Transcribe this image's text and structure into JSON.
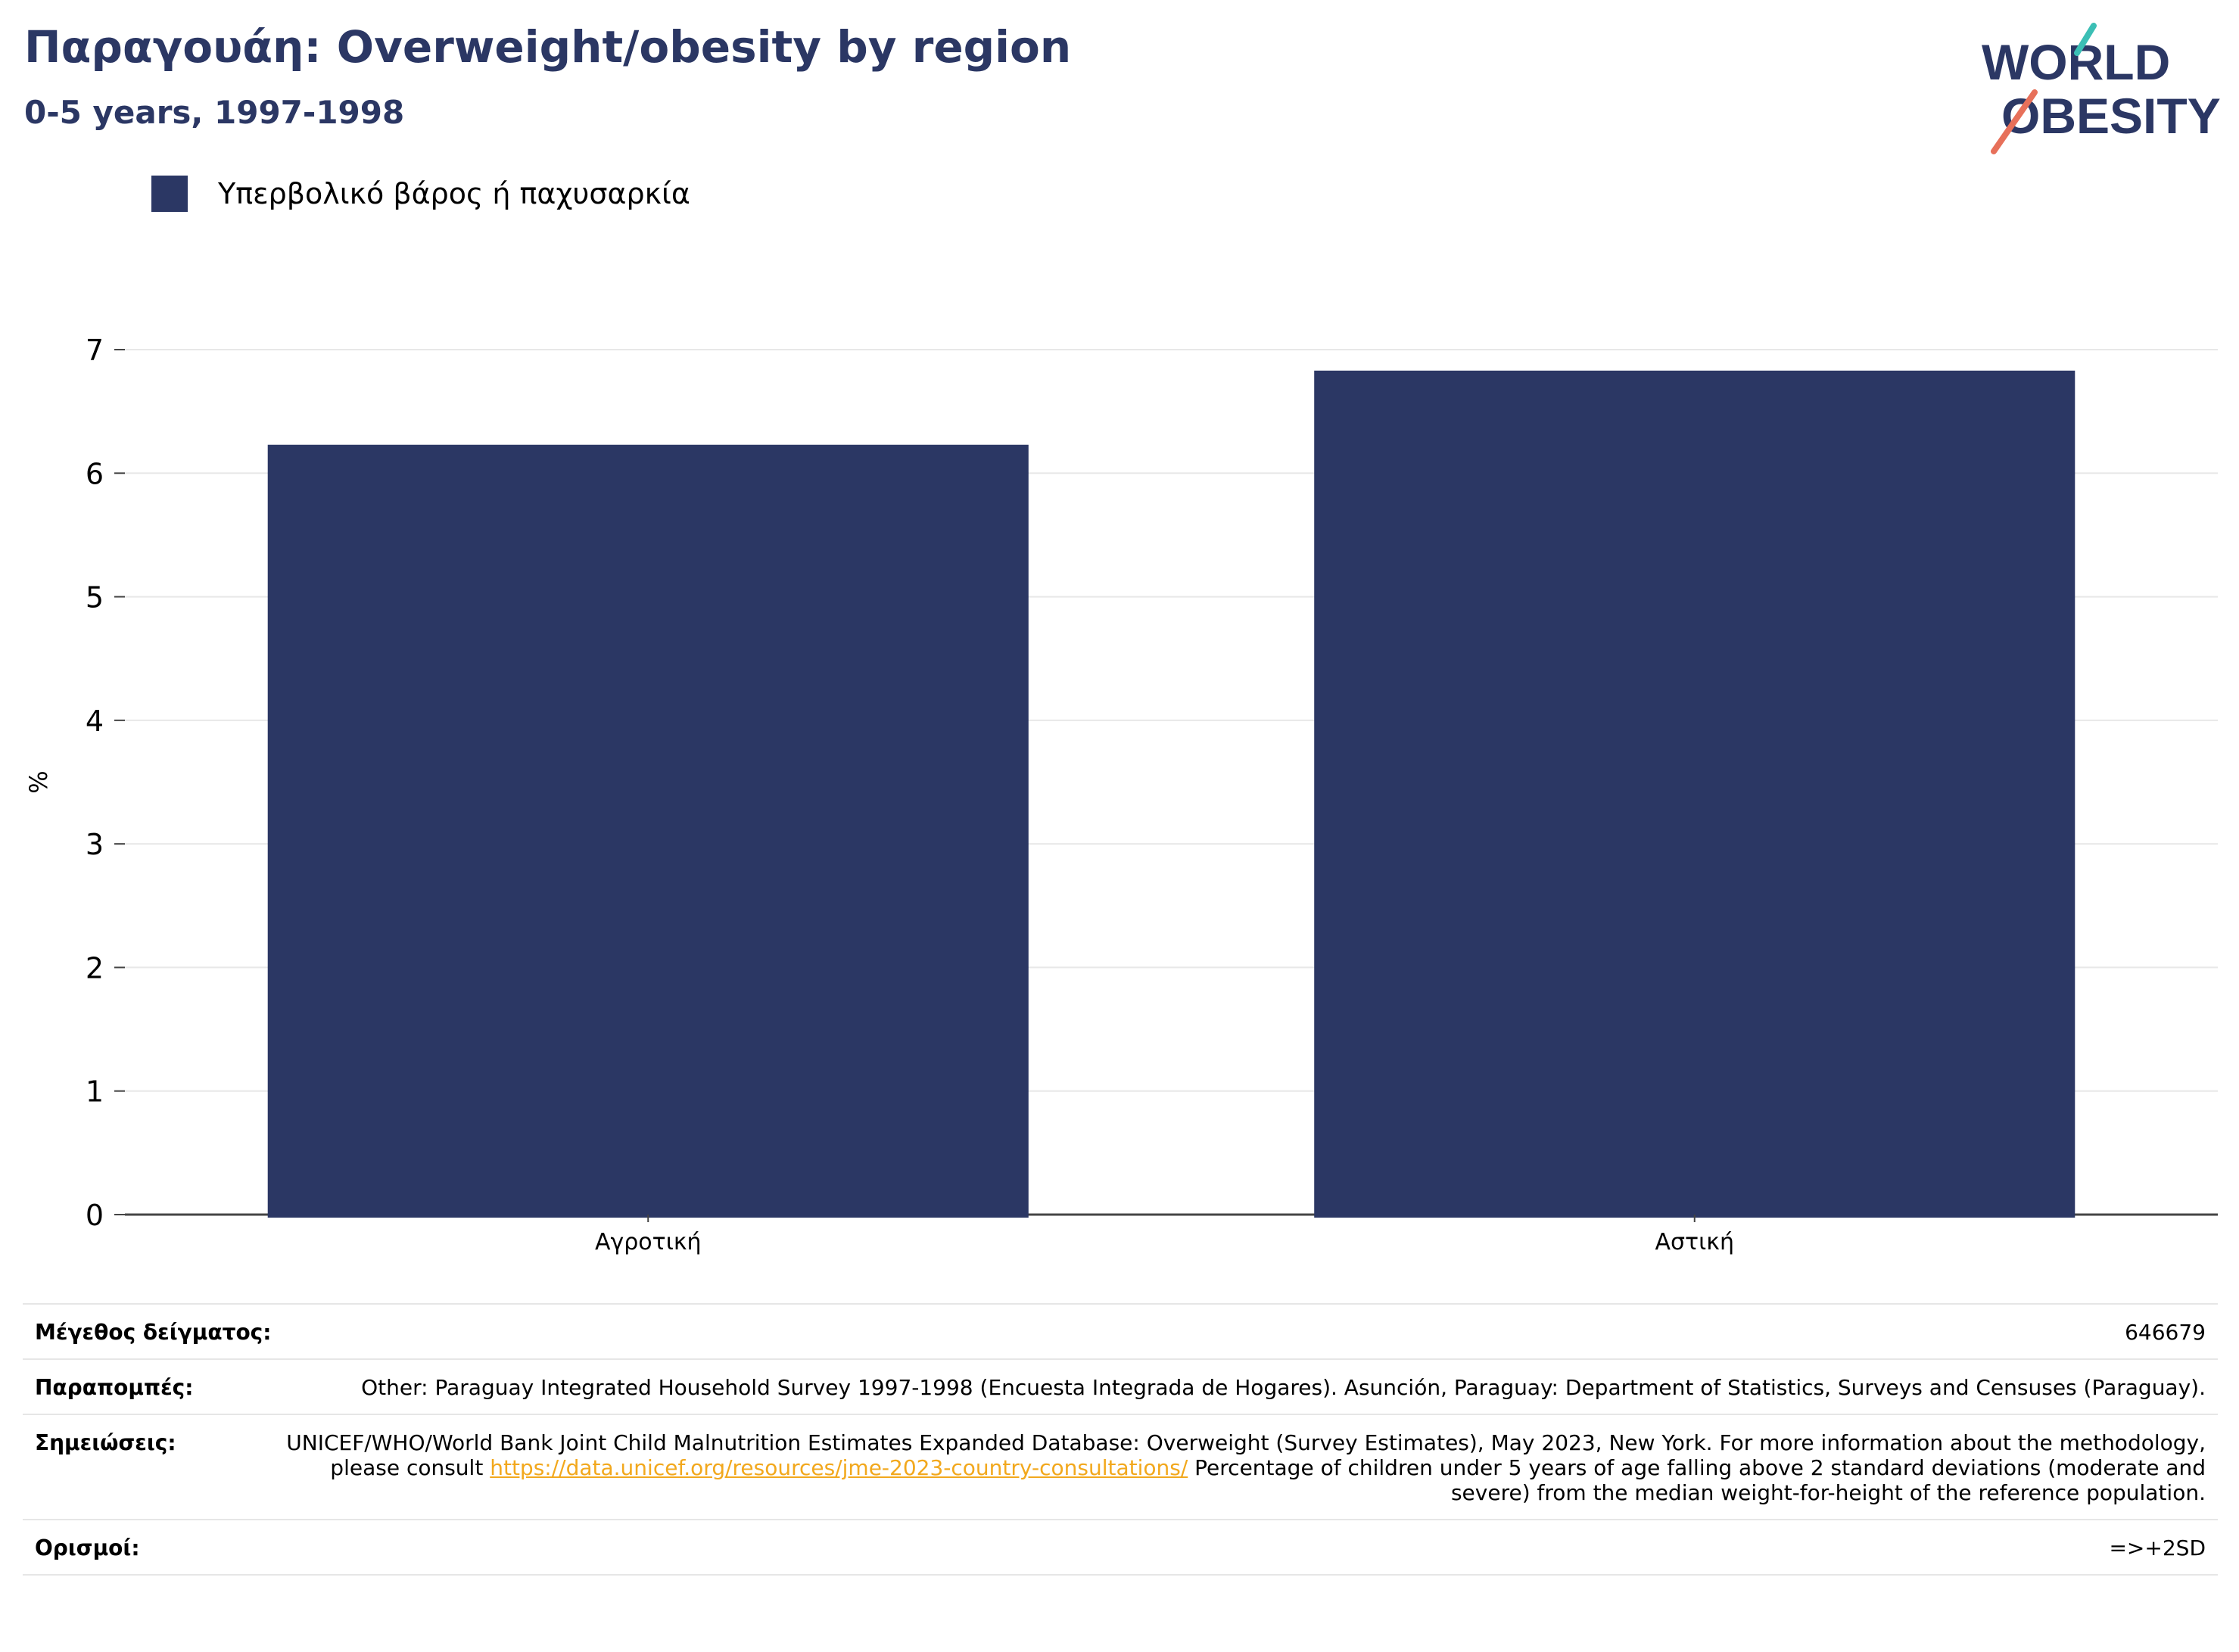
{
  "header": {
    "title": "Παραγουάη: Overweight/obesity by region",
    "subtitle": "0-5 years, 1997-1998"
  },
  "logo": {
    "line1": "WORLD",
    "line2": "OBESITY"
  },
  "legend": {
    "label": "Υπερβολικό βάρος ή παχυσαρκία",
    "color": "#2b3764"
  },
  "chart_data": {
    "type": "bar",
    "title": "Παραγουάη: Overweight/obesity by region",
    "subtitle": "0-5 years, 1997-1998",
    "categories": [
      "Αγροτική",
      "Αστική"
    ],
    "series": [
      {
        "name": "Υπερβολικό βάρος ή παχυσαρκία",
        "values": [
          6.23,
          6.83
        ],
        "color": "#2b3764"
      }
    ],
    "ylabel": "%",
    "xlabel": "",
    "ylim": [
      0,
      7
    ],
    "yticks": [
      "0",
      "1",
      "2",
      "3",
      "4",
      "5",
      "6",
      "7"
    ],
    "grid": true,
    "legend_position": "top-left"
  },
  "info": {
    "sample_label": "Μέγεθος δείγματος:",
    "sample_value": "646679",
    "refs_label": "Παραπομπές:",
    "refs_value": "Other: Paraguay Integrated Household Survey 1997-1998 (Encuesta Integrada de Hogares). Asunción, Paraguay: Department of Statistics, Surveys and Censuses (Paraguay).",
    "notes_label": "Σημειώσεις:",
    "notes_pre": "UNICEF/WHO/World Bank Joint Child Malnutrition Estimates Expanded Database: Overweight (Survey Estimates), May 2023, New York. For more information about the methodology, please consult",
    "notes_link": "https://data.unicef.org/resources/jme-2023-country-consultations/",
    "notes_post": "Percentage of children under 5 years of age falling above 2 standard deviations (moderate and severe) from the median weight-for-height of the reference population.",
    "defs_label": "Ορισμοί:",
    "defs_value": "=>+2SD"
  }
}
